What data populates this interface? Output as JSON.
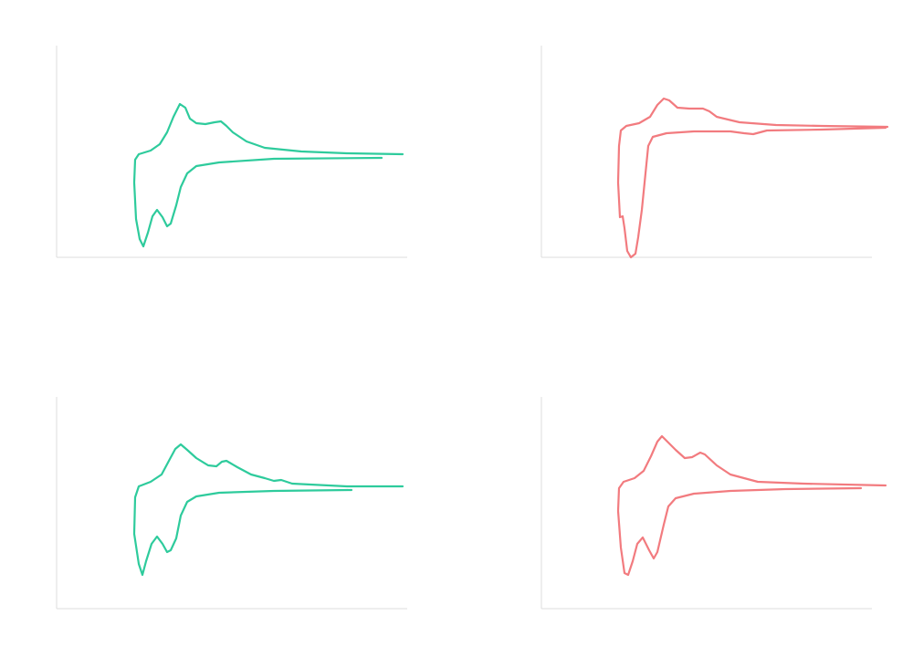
{
  "chart_data": [
    {
      "type": "line",
      "color": "#2ecb9c",
      "xlim": [
        0,
        384
      ],
      "ylim": [
        0,
        232
      ],
      "x": [
        356,
        238,
        178,
        153,
        143,
        136,
        131,
        125,
        121,
        116,
        110,
        105,
        100,
        95,
        91,
        87,
        85,
        86,
        90,
        103,
        113,
        121,
        128,
        135,
        141,
        146,
        153,
        163,
        173,
        180,
        186,
        193,
        208,
        228,
        268,
        318,
        379
      ],
      "values": [
        109,
        108,
        104,
        100,
        92,
        77,
        57,
        37,
        34,
        44,
        52,
        45,
        27,
        12,
        20,
        42,
        82,
        107,
        113,
        117,
        124,
        137,
        154,
        168,
        164,
        152,
        147,
        146,
        148,
        149,
        144,
        137,
        127,
        120,
        116,
        114,
        113
      ]
    },
    {
      "type": "line",
      "color": "#f27b7f",
      "xlim": [
        0,
        362
      ],
      "ylim": [
        0,
        232
      ],
      "x": [
        377,
        307,
        247,
        232,
        222,
        207,
        167,
        137,
        122,
        117,
        114,
        110,
        106,
        103,
        98,
        94,
        91,
        89,
        86,
        84,
        85,
        87,
        93,
        107,
        119,
        127,
        134,
        140,
        149,
        162,
        177,
        184,
        192,
        217,
        257,
        307,
        379
      ],
      "values": [
        142,
        140,
        139,
        135,
        136,
        138,
        138,
        136,
        132,
        122,
        92,
        52,
        22,
        4,
        0,
        7,
        32,
        45,
        44,
        82,
        122,
        139,
        144,
        147,
        154,
        167,
        174,
        172,
        164,
        163,
        163,
        160,
        154,
        148,
        145,
        144,
        143
      ]
    },
    {
      "type": "line",
      "color": "#2ecb9c",
      "xlim": [
        0,
        384
      ],
      "ylim": [
        0,
        232
      ],
      "x": [
        323,
        238,
        178,
        153,
        143,
        136,
        131,
        125,
        121,
        116,
        110,
        104,
        98,
        94,
        90,
        85,
        86,
        90,
        103,
        115,
        123,
        130,
        136,
        143,
        153,
        166,
        175,
        181,
        186,
        198,
        213,
        228,
        238,
        246,
        258,
        318,
        379
      ],
      "values": [
        130,
        129,
        127,
        123,
        117,
        102,
        77,
        64,
        62,
        71,
        79,
        71,
        52,
        37,
        49,
        82,
        122,
        134,
        139,
        147,
        162,
        175,
        180,
        174,
        165,
        157,
        156,
        161,
        162,
        155,
        147,
        143,
        140,
        141,
        137,
        134,
        134
      ]
    },
    {
      "type": "line",
      "color": "#f27b7f",
      "xlim": [
        0,
        362
      ],
      "ylim": [
        0,
        232
      ],
      "x": [
        350,
        267,
        207,
        167,
        147,
        139,
        134,
        127,
        123,
        118,
        111,
        105,
        100,
        95,
        91,
        87,
        84,
        85,
        90,
        102,
        112,
        120,
        127,
        132,
        138,
        147,
        157,
        165,
        174,
        179,
        192,
        207,
        237,
        287,
        377
      ],
      "values": [
        132,
        131,
        129,
        126,
        121,
        112,
        92,
        62,
        55,
        64,
        78,
        71,
        52,
        37,
        39,
        67,
        107,
        132,
        139,
        143,
        151,
        167,
        183,
        189,
        183,
        174,
        165,
        166,
        171,
        169,
        157,
        147,
        139,
        137,
        135
      ]
    }
  ]
}
